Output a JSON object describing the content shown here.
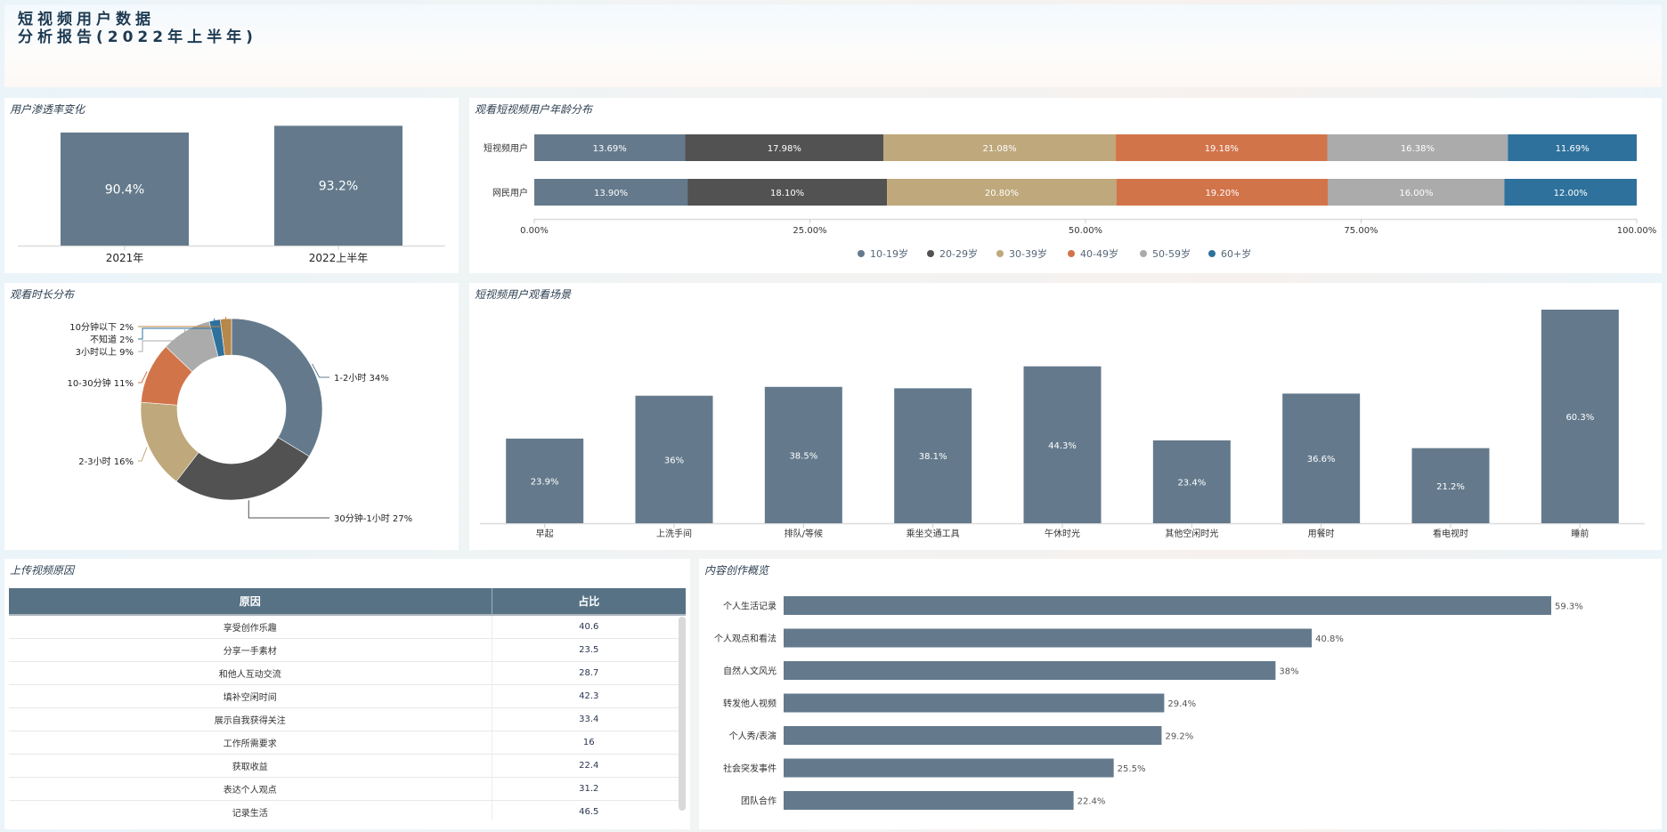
{
  "header": {
    "title_line1": "短视频用户数据",
    "title_line2": "分析报告(2022年上半年)"
  },
  "colors": {
    "slate": "#647a8c",
    "dark": "#525252",
    "tan": "#bfa87b",
    "orange": "#d2744a",
    "gray": "#ababab",
    "blue": "#2e719c",
    "brown": "#b8874a",
    "table_header": "#587285"
  },
  "chart_data": [
    {
      "id": "penetration",
      "type": "bar",
      "title": "用户渗透率变化",
      "categories": [
        "2021年",
        "2022上半年"
      ],
      "values": [
        90.4,
        93.2
      ],
      "labels": [
        "90.4%",
        "93.2%"
      ],
      "ylim": [
        0,
        100
      ],
      "grid": false
    },
    {
      "id": "age",
      "type": "bar",
      "orientation": "horizontal-stacked",
      "title": "观看短视频用户年龄分布",
      "categories": [
        "短视频用户",
        "网民用户"
      ],
      "series": [
        {
          "name": "10-19岁",
          "color": "#647a8c",
          "values": [
            13.69,
            13.9
          ],
          "labels": [
            "13.69%",
            "13.90%"
          ]
        },
        {
          "name": "20-29岁",
          "color": "#525252",
          "values": [
            17.98,
            18.1
          ],
          "labels": [
            "17.98%",
            "18.10%"
          ]
        },
        {
          "name": "30-39岁",
          "color": "#bfa87b",
          "values": [
            21.08,
            20.8
          ],
          "labels": [
            "21.08%",
            "20.80%"
          ]
        },
        {
          "name": "40-49岁",
          "color": "#d2744a",
          "values": [
            19.18,
            19.2
          ],
          "labels": [
            "19.18%",
            "19.20%"
          ]
        },
        {
          "name": "50-59岁",
          "color": "#ababab",
          "values": [
            16.38,
            16.0
          ],
          "labels": [
            "16.38%",
            "16.00%"
          ]
        },
        {
          "name": "60+岁",
          "color": "#2e719c",
          "values": [
            11.69,
            12.0
          ],
          "labels": [
            "11.69%",
            "12.00%"
          ]
        }
      ],
      "xticks": [
        "0.00%",
        "25.00%",
        "50.00%",
        "75.00%",
        "100.00%"
      ],
      "xlim": [
        0,
        100
      ],
      "legend": "bottom-center"
    },
    {
      "id": "duration",
      "type": "pie",
      "variant": "donut",
      "title": "观看时长分布",
      "slices": [
        {
          "name": "1-2小时",
          "value": 34,
          "label": "1-2小时 34%",
          "color": "#647a8c"
        },
        {
          "name": "30分钟-1小时",
          "value": 27,
          "label": "30分钟-1小时 27%",
          "color": "#525252"
        },
        {
          "name": "2-3小时",
          "value": 16,
          "label": "2-3小时 16%",
          "color": "#bfa87b"
        },
        {
          "name": "10-30分钟",
          "value": 11,
          "label": "10-30分钟 11%",
          "color": "#d2744a"
        },
        {
          "name": "3小时以上",
          "value": 9,
          "label": "3小时以上 9%",
          "color": "#ababab"
        },
        {
          "name": "不知道",
          "value": 2,
          "label": "不知道 2%",
          "color": "#2e719c"
        },
        {
          "name": "10分钟以下",
          "value": 2,
          "label": "10分钟以下 2%",
          "color": "#b8874a"
        }
      ]
    },
    {
      "id": "scenes",
      "type": "bar",
      "title": "短视频用户观看场景",
      "categories": [
        "早起",
        "上洗手间",
        "排队/等候",
        "乘坐交通工具",
        "午休时光",
        "其他空闲时光",
        "用餐时",
        "看电视时",
        "睡前"
      ],
      "values": [
        23.9,
        36,
        38.5,
        38.1,
        44.3,
        23.4,
        36.6,
        21.2,
        60.3
      ],
      "labels": [
        "23.9%",
        "36%",
        "38.5%",
        "38.1%",
        "44.3%",
        "23.4%",
        "36.6%",
        "21.2%",
        "60.3%"
      ],
      "ylim": [
        0,
        60.3
      ]
    },
    {
      "id": "content",
      "type": "bar",
      "orientation": "horizontal",
      "title": "内容创作概览",
      "categories": [
        "个人生活记录",
        "个人观点和看法",
        "自然人文风光",
        "转发他人视频",
        "个人秀/表演",
        "社会突发事件",
        "团队合作"
      ],
      "values": [
        59.3,
        40.8,
        38,
        29.4,
        29.2,
        25.5,
        22.4
      ],
      "labels": [
        "59.3%",
        "40.8%",
        "38%",
        "29.4%",
        "29.2%",
        "25.5%",
        "22.4%"
      ],
      "xlim": [
        0,
        59.3
      ]
    }
  ],
  "upload_table": {
    "title": "上传视频原因",
    "columns": [
      "原因",
      "占比"
    ],
    "rows": [
      [
        "享受创作乐趣",
        "40.6"
      ],
      [
        "分享一手素材",
        "23.5"
      ],
      [
        "和他人互动交流",
        "28.7"
      ],
      [
        "填补空闲时间",
        "42.3"
      ],
      [
        "展示自我获得关注",
        "33.4"
      ],
      [
        "工作所需要求",
        "16"
      ],
      [
        "获取收益",
        "22.4"
      ],
      [
        "表达个人观点",
        "31.2"
      ],
      [
        "记录生活",
        "46.5"
      ]
    ]
  }
}
